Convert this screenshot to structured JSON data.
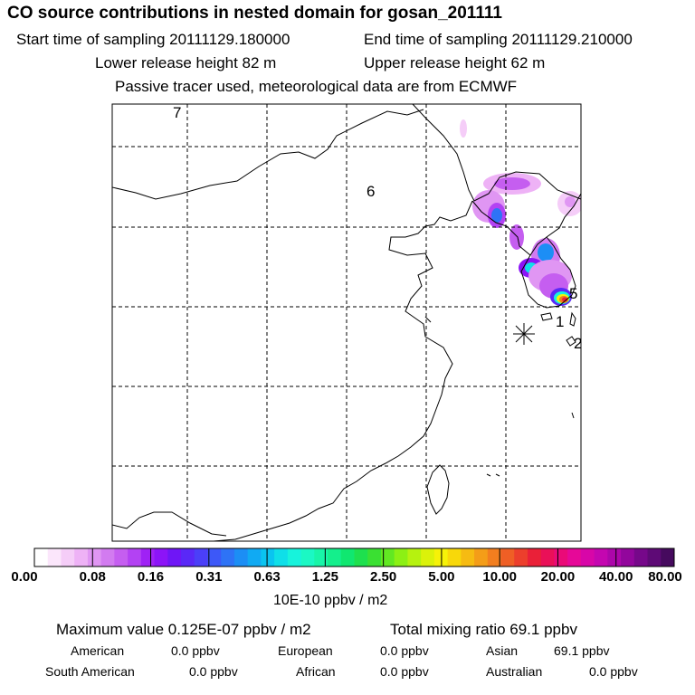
{
  "header": {
    "title": "CO  source contributions in nested domain for gosan_201111",
    "start_time": "Start time of sampling 20111129.180000",
    "end_time": "End time of sampling 20111129.210000",
    "lower_height": "Lower release height   82 m",
    "upper_height": "Upper release height   62 m",
    "tracer_note": "Passive tracer used, meteorological data are from ECMWF"
  },
  "map": {
    "region_labels": [
      "7",
      "6",
      "5",
      "1",
      "2"
    ],
    "receptor_marker": "gosan-station",
    "gridlines": "dashed"
  },
  "colorbar": {
    "tick_labels": [
      "0.00",
      "0.08",
      "0.16",
      "0.31",
      "0.63",
      "1.25",
      "2.50",
      "5.00",
      "10.00",
      "20.00",
      "40.00",
      "80.00"
    ],
    "units": "10E-10 ppbv / m2",
    "colors": [
      "#ffffff",
      "#fbe6fb",
      "#f5cdf8",
      "#eeb2f6",
      "#e096f3",
      "#d27bf0",
      "#c55ef0",
      "#b342f3",
      "#9f22f5",
      "#8c14f7",
      "#6f16f6",
      "#5a28f7",
      "#4b3ff8",
      "#3d58f8",
      "#2e73f6",
      "#1c8ef5",
      "#10aaf3",
      "#0ac4f0",
      "#0fdfe8",
      "#17f3dc",
      "#1bf8c4",
      "#18f5a8",
      "#14ef8c",
      "#10e770",
      "#1ee04e",
      "#3ae032",
      "#62e822",
      "#8cf014",
      "#b6f20f",
      "#dbf20a",
      "#f6f208",
      "#f8d80a",
      "#f6bb12",
      "#f49d18",
      "#f27e1f",
      "#ef5f25",
      "#ec3f2c",
      "#ea2038",
      "#ea1058",
      "#ea0a78",
      "#e60898",
      "#d806a8",
      "#c406b0",
      "#ac06aa",
      "#92069c",
      "#76088a",
      "#5e0a76",
      "#460a5e"
    ]
  },
  "stats": {
    "max_label": "Maximum value  0.125E-07 ppbv / m2",
    "total_label": "Total mixing ratio       69.1 ppbv",
    "regions": [
      {
        "name": "American",
        "value": "0.0 ppbv"
      },
      {
        "name": "European",
        "value": "0.0 ppbv"
      },
      {
        "name": "Asian",
        "value": "69.1 ppbv"
      },
      {
        "name": "South American",
        "value": "0.0 ppbv"
      },
      {
        "name": "African",
        "value": "0.0 ppbv"
      },
      {
        "name": "Australian",
        "value": "0.0 ppbv"
      }
    ]
  }
}
